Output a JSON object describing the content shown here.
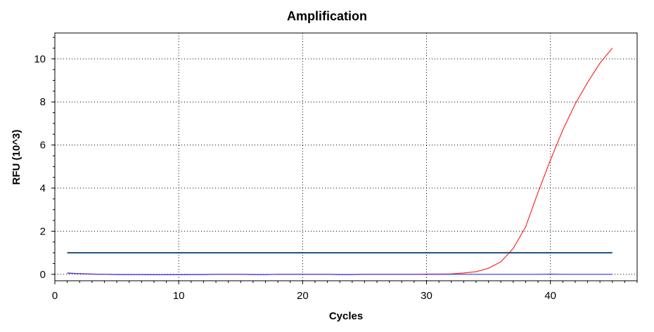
{
  "chart_data": {
    "type": "line",
    "title": "Amplification",
    "xlabel": "Cycles",
    "ylabel": "RFU (10^3)",
    "xlim": [
      0,
      47
    ],
    "ylim": [
      -0.3,
      11.2
    ],
    "x_ticks": [
      0,
      10,
      20,
      30,
      40
    ],
    "y_ticks": [
      0,
      2,
      4,
      6,
      8,
      10
    ],
    "grid": true,
    "legend": "none",
    "threshold": {
      "value": 1.0,
      "x_range": [
        1,
        45
      ],
      "color": "#1f4e79"
    },
    "series": [
      {
        "color": "#ff2a2a",
        "x": [
          1,
          2,
          3,
          4,
          5,
          6,
          7,
          8,
          9,
          10,
          11,
          12,
          13,
          14,
          15,
          16,
          17,
          18,
          19,
          20,
          21,
          22,
          23,
          24,
          25,
          26,
          27,
          28,
          29,
          30,
          31,
          32,
          33,
          34,
          35,
          36,
          37,
          38,
          39,
          40,
          41,
          42,
          43,
          44,
          45
        ],
        "y": [
          0.06,
          0.03,
          0.01,
          0.0,
          -0.01,
          -0.01,
          -0.01,
          -0.02,
          -0.02,
          -0.02,
          -0.01,
          -0.01,
          0.0,
          0.0,
          0.0,
          -0.01,
          -0.01,
          0.0,
          0.0,
          0.0,
          0.0,
          0.0,
          -0.01,
          -0.01,
          0.0,
          0.0,
          0.0,
          0.0,
          0.0,
          0.01,
          0.01,
          0.02,
          0.06,
          0.12,
          0.28,
          0.58,
          1.2,
          2.2,
          3.8,
          5.3,
          6.7,
          7.9,
          8.9,
          9.8,
          10.5
        ]
      },
      {
        "color": "#3a3aff",
        "x": [
          1,
          2,
          3,
          4,
          5,
          6,
          7,
          8,
          9,
          10,
          11,
          12,
          13,
          14,
          15,
          16,
          17,
          18,
          19,
          20,
          21,
          22,
          23,
          24,
          25,
          26,
          27,
          28,
          29,
          30,
          31,
          32,
          33,
          34,
          35,
          36,
          37,
          38,
          39,
          40,
          41,
          42,
          43,
          44,
          45
        ],
        "y": [
          0.05,
          0.03,
          0.01,
          0.0,
          -0.01,
          -0.01,
          -0.01,
          -0.02,
          -0.02,
          -0.02,
          -0.01,
          -0.01,
          0.0,
          0.0,
          0.0,
          -0.01,
          -0.01,
          0.0,
          0.0,
          0.0,
          0.0,
          0.0,
          -0.01,
          -0.01,
          0.0,
          0.0,
          0.0,
          0.0,
          0.0,
          0.0,
          0.0,
          0.0,
          0.0,
          0.0,
          0.0,
          0.0,
          0.0,
          0.0,
          0.0,
          0.01,
          0.0,
          0.0,
          0.0,
          0.0,
          0.0
        ]
      }
    ]
  }
}
